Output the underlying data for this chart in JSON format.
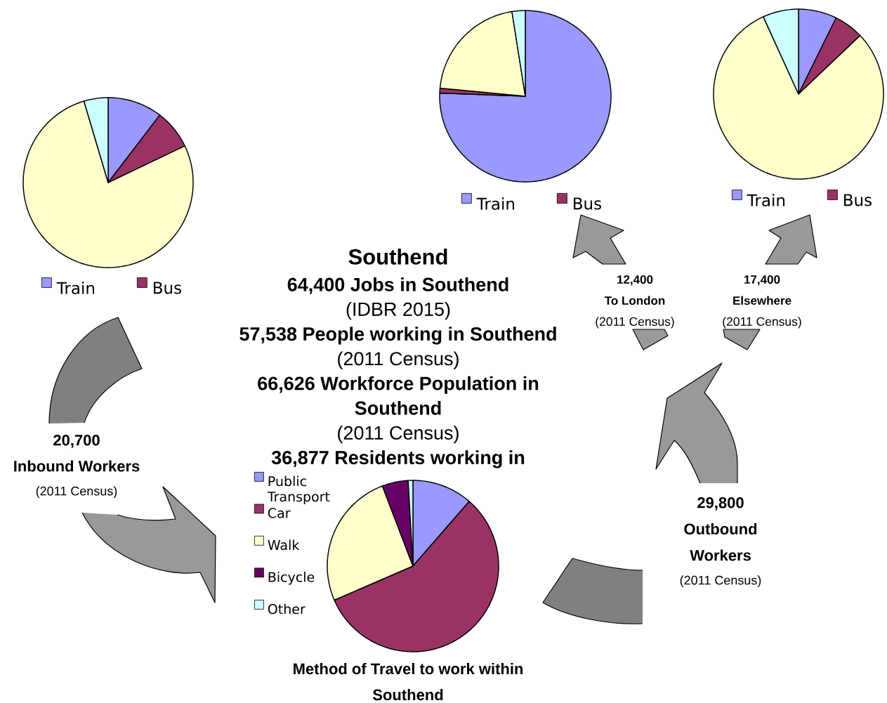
{
  "chart_data": [
    {
      "type": "pie",
      "title": "20,700",
      "subtitle": "Inbound Workers",
      "annotations": [
        "(2011 Census)"
      ],
      "categories": [
        "Train",
        "Bus",
        null,
        null
      ],
      "values": [
        10.4,
        7.5,
        77.5,
        4.6
      ],
      "colors": [
        "#9999ff",
        "#993366",
        "#ffffcc",
        "#ccffff"
      ],
      "legend": "bottom"
    },
    {
      "type": "pie",
      "title": "12,400",
      "subtitle": "To London",
      "annotations": [
        "(2011 Census)"
      ],
      "categories": [
        "Train",
        "Bus",
        null,
        null
      ],
      "values": [
        75.6,
        0.9,
        21.0,
        2.5
      ],
      "colors": [
        "#9999ff",
        "#993366",
        "#ffffcc",
        "#ccffff"
      ],
      "legend": "bottom"
    },
    {
      "type": "pie",
      "title": "17,400",
      "subtitle": "Elsewhere",
      "annotations": [
        "(2011 Census)"
      ],
      "categories": [
        "Train",
        "Bus",
        null,
        null
      ],
      "values": [
        7.3,
        5.6,
        80.3,
        6.8
      ],
      "colors": [
        "#9999ff",
        "#993366",
        "#ffffcc",
        "#ccffff"
      ],
      "legend": "bottom"
    },
    {
      "type": "other",
      "title": "Southend",
      "subtitle": "64,400 Jobs in Southend",
      "annotations": [
        "(IDBR 2015)",
        "57,538 People working in Southend",
        "(2011 Census)",
        "66,626 Workforce Population in Southend",
        "(2011 Census)",
        "36,877 Residents working in"
      ]
    },
    {
      "type": "other",
      "title": "29,800",
      "subtitle": "Outbound Workers",
      "annotations": [
        "(2011 Census)"
      ]
    },
    {
      "type": "pie",
      "title": "Method of Travel to work within Southend",
      "categories": [
        "Public Transport",
        "Car",
        "Walk",
        "Bicycle",
        "Other"
      ],
      "values": [
        11.4,
        57.1,
        25.7,
        4.9,
        0.9
      ],
      "colors": [
        "#9999ff",
        "#993366",
        "#ffffcc",
        "#660066",
        "#ccffff"
      ],
      "legend": "left"
    }
  ]
}
